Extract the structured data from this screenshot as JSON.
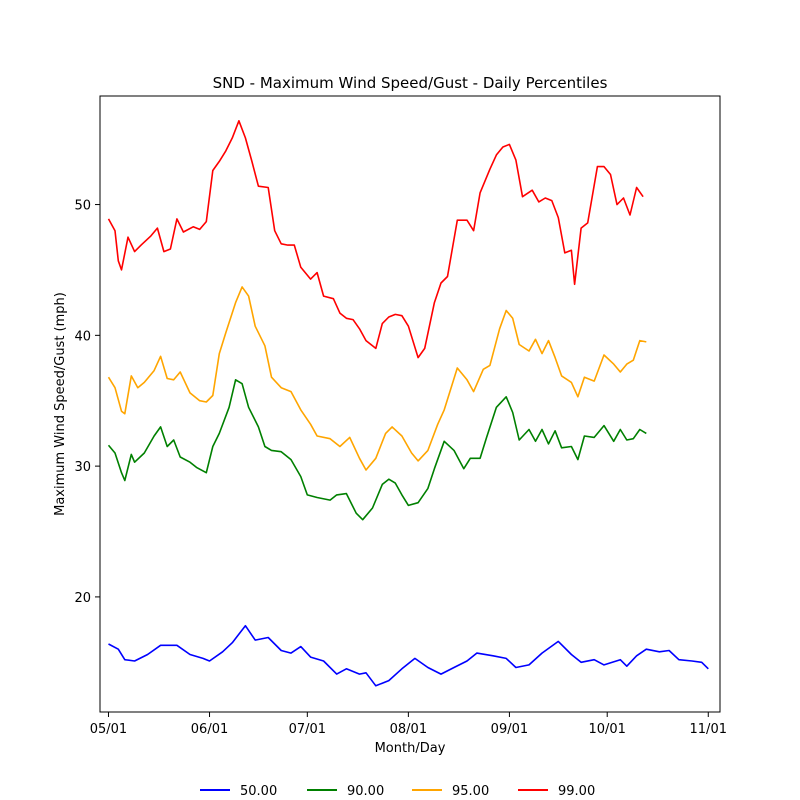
{
  "chart_data": {
    "type": "line",
    "title": "SND - Maximum Wind Speed/Gust - Daily Percentiles",
    "xlabel": "Month/Day",
    "ylabel": "Maximum Wind Speed/Gust (mph)",
    "x_ticks": [
      "05/01",
      "06/01",
      "07/01",
      "08/01",
      "09/01",
      "10/01",
      "11/01"
    ],
    "y_ticks": [
      20,
      30,
      40,
      50
    ],
    "ylim": [
      11.2,
      58.3
    ],
    "x_range_days": [
      -2.6,
      187.6
    ],
    "grid": false,
    "legend_placement": "bottom-center",
    "series": [
      {
        "name": "50.00",
        "color": "#0000ff",
        "points": [
          [
            0,
            16.4
          ],
          [
            3,
            16.0
          ],
          [
            5,
            15.2
          ],
          [
            8,
            15.1
          ],
          [
            12,
            15.6
          ],
          [
            16,
            16.3
          ],
          [
            21,
            16.3
          ],
          [
            25,
            15.6
          ],
          [
            29,
            15.3
          ],
          [
            31,
            15.1
          ],
          [
            35,
            15.8
          ],
          [
            38,
            16.5
          ],
          [
            42,
            17.8
          ],
          [
            45,
            16.7
          ],
          [
            49,
            16.9
          ],
          [
            53,
            15.9
          ],
          [
            56,
            15.7
          ],
          [
            59,
            16.2
          ],
          [
            62,
            15.4
          ],
          [
            66,
            15.1
          ],
          [
            70,
            14.1
          ],
          [
            73,
            14.5
          ],
          [
            77,
            14.1
          ],
          [
            79,
            14.2
          ],
          [
            82,
            13.2
          ],
          [
            86,
            13.6
          ],
          [
            90,
            14.5
          ],
          [
            94,
            15.3
          ],
          [
            98,
            14.6
          ],
          [
            102,
            14.1
          ],
          [
            106,
            14.6
          ],
          [
            110,
            15.1
          ],
          [
            113,
            15.7
          ],
          [
            118,
            15.5
          ],
          [
            122,
            15.3
          ],
          [
            125,
            14.6
          ],
          [
            129,
            14.8
          ],
          [
            133,
            15.7
          ],
          [
            138,
            16.6
          ],
          [
            142,
            15.6
          ],
          [
            145,
            15.0
          ],
          [
            149,
            15.2
          ],
          [
            152,
            14.8
          ],
          [
            157,
            15.2
          ],
          [
            159,
            14.7
          ],
          [
            162,
            15.5
          ],
          [
            165,
            16.0
          ],
          [
            169,
            15.8
          ],
          [
            172,
            15.9
          ],
          [
            175,
            15.2
          ],
          [
            179,
            15.1
          ],
          [
            182,
            15.0
          ],
          [
            184,
            14.5
          ]
        ]
      },
      {
        "name": "90.00",
        "color": "#008000",
        "points": [
          [
            0,
            31.6
          ],
          [
            2,
            31.0
          ],
          [
            4,
            29.5
          ],
          [
            5,
            28.9
          ],
          [
            7,
            30.9
          ],
          [
            8,
            30.3
          ],
          [
            11,
            31.0
          ],
          [
            14,
            32.3
          ],
          [
            16,
            33.0
          ],
          [
            18,
            31.5
          ],
          [
            20,
            32.0
          ],
          [
            22,
            30.7
          ],
          [
            25,
            30.3
          ],
          [
            27,
            29.9
          ],
          [
            30,
            29.5
          ],
          [
            32,
            31.5
          ],
          [
            34,
            32.5
          ],
          [
            37,
            34.5
          ],
          [
            39,
            36.6
          ],
          [
            41,
            36.3
          ],
          [
            43,
            34.5
          ],
          [
            46,
            33.0
          ],
          [
            48,
            31.5
          ],
          [
            50,
            31.2
          ],
          [
            53,
            31.1
          ],
          [
            56,
            30.5
          ],
          [
            59,
            29.2
          ],
          [
            61,
            27.8
          ],
          [
            64,
            27.6
          ],
          [
            68,
            27.4
          ],
          [
            70,
            27.8
          ],
          [
            73,
            27.9
          ],
          [
            76,
            26.4
          ],
          [
            78,
            25.9
          ],
          [
            81,
            26.8
          ],
          [
            84,
            28.6
          ],
          [
            86,
            29.0
          ],
          [
            88,
            28.7
          ],
          [
            90,
            27.8
          ],
          [
            92,
            27.0
          ],
          [
            95,
            27.2
          ],
          [
            98,
            28.3
          ],
          [
            100,
            29.8
          ],
          [
            103,
            31.9
          ],
          [
            106,
            31.2
          ],
          [
            109,
            29.8
          ],
          [
            111,
            30.6
          ],
          [
            114,
            30.6
          ],
          [
            116,
            32.2
          ],
          [
            119,
            34.5
          ],
          [
            122,
            35.3
          ],
          [
            124,
            34.1
          ],
          [
            126,
            32.0
          ],
          [
            129,
            32.8
          ],
          [
            131,
            31.9
          ],
          [
            133,
            32.8
          ],
          [
            135,
            31.7
          ],
          [
            137,
            32.7
          ],
          [
            139,
            31.4
          ],
          [
            142,
            31.5
          ],
          [
            144,
            30.5
          ],
          [
            146,
            32.3
          ],
          [
            149,
            32.2
          ],
          [
            152,
            33.1
          ],
          [
            155,
            31.9
          ],
          [
            157,
            32.8
          ],
          [
            159,
            32.0
          ],
          [
            161,
            32.1
          ],
          [
            163,
            32.8
          ],
          [
            165,
            32.5
          ]
        ]
      },
      {
        "name": "95.00",
        "color": "#ffa500",
        "points": [
          [
            0,
            36.8
          ],
          [
            2,
            36.0
          ],
          [
            4,
            34.2
          ],
          [
            5,
            34.0
          ],
          [
            7,
            36.9
          ],
          [
            9,
            36.0
          ],
          [
            11,
            36.4
          ],
          [
            14,
            37.3
          ],
          [
            16,
            38.4
          ],
          [
            18,
            36.7
          ],
          [
            20,
            36.6
          ],
          [
            22,
            37.2
          ],
          [
            25,
            35.6
          ],
          [
            28,
            35.0
          ],
          [
            30,
            34.9
          ],
          [
            32,
            35.4
          ],
          [
            34,
            38.6
          ],
          [
            36,
            40.2
          ],
          [
            39,
            42.5
          ],
          [
            41,
            43.7
          ],
          [
            43,
            43.0
          ],
          [
            45,
            40.7
          ],
          [
            48,
            39.2
          ],
          [
            50,
            36.8
          ],
          [
            53,
            36.0
          ],
          [
            56,
            35.7
          ],
          [
            59,
            34.3
          ],
          [
            62,
            33.2
          ],
          [
            64,
            32.3
          ],
          [
            68,
            32.1
          ],
          [
            71,
            31.5
          ],
          [
            74,
            32.2
          ],
          [
            77,
            30.6
          ],
          [
            79,
            29.7
          ],
          [
            82,
            30.6
          ],
          [
            85,
            32.5
          ],
          [
            87,
            33.0
          ],
          [
            90,
            32.3
          ],
          [
            93,
            31.0
          ],
          [
            95,
            30.4
          ],
          [
            98,
            31.2
          ],
          [
            101,
            33.2
          ],
          [
            103,
            34.3
          ],
          [
            107,
            37.5
          ],
          [
            110,
            36.6
          ],
          [
            112,
            35.7
          ],
          [
            115,
            37.4
          ],
          [
            117,
            37.7
          ],
          [
            120,
            40.5
          ],
          [
            122,
            41.9
          ],
          [
            124,
            41.3
          ],
          [
            126,
            39.3
          ],
          [
            129,
            38.8
          ],
          [
            131,
            39.7
          ],
          [
            133,
            38.6
          ],
          [
            135,
            39.6
          ],
          [
            137,
            38.3
          ],
          [
            139,
            36.9
          ],
          [
            142,
            36.4
          ],
          [
            144,
            35.3
          ],
          [
            146,
            36.8
          ],
          [
            149,
            36.5
          ],
          [
            152,
            38.5
          ],
          [
            155,
            37.8
          ],
          [
            157,
            37.2
          ],
          [
            159,
            37.8
          ],
          [
            161,
            38.1
          ],
          [
            163,
            39.6
          ],
          [
            165,
            39.5
          ]
        ]
      },
      {
        "name": "99.00",
        "color": "#ff0000",
        "points": [
          [
            0,
            48.9
          ],
          [
            2,
            48.0
          ],
          [
            3,
            45.7
          ],
          [
            4,
            45.0
          ],
          [
            6,
            47.5
          ],
          [
            8,
            46.4
          ],
          [
            10,
            46.9
          ],
          [
            13,
            47.6
          ],
          [
            15,
            48.2
          ],
          [
            17,
            46.4
          ],
          [
            19,
            46.6
          ],
          [
            21,
            48.9
          ],
          [
            23,
            47.9
          ],
          [
            26,
            48.3
          ],
          [
            28,
            48.1
          ],
          [
            30,
            48.7
          ],
          [
            32,
            52.6
          ],
          [
            34,
            53.3
          ],
          [
            36,
            54.1
          ],
          [
            38,
            55.1
          ],
          [
            40,
            56.4
          ],
          [
            42,
            55.1
          ],
          [
            44,
            53.3
          ],
          [
            46,
            51.4
          ],
          [
            49,
            51.3
          ],
          [
            51,
            48.0
          ],
          [
            53,
            47.0
          ],
          [
            55,
            46.9
          ],
          [
            57,
            46.9
          ],
          [
            59,
            45.2
          ],
          [
            62,
            44.3
          ],
          [
            64,
            44.8
          ],
          [
            66,
            43.0
          ],
          [
            69,
            42.8
          ],
          [
            71,
            41.7
          ],
          [
            73,
            41.3
          ],
          [
            75,
            41.2
          ],
          [
            77,
            40.5
          ],
          [
            79,
            39.6
          ],
          [
            82,
            39.0
          ],
          [
            84,
            40.9
          ],
          [
            86,
            41.4
          ],
          [
            88,
            41.6
          ],
          [
            90,
            41.5
          ],
          [
            92,
            40.7
          ],
          [
            95,
            38.3
          ],
          [
            97,
            39.0
          ],
          [
            100,
            42.5
          ],
          [
            102,
            44.0
          ],
          [
            104,
            44.5
          ],
          [
            107,
            48.8
          ],
          [
            110,
            48.8
          ],
          [
            112,
            48.0
          ],
          [
            114,
            50.9
          ],
          [
            117,
            52.7
          ],
          [
            119,
            53.8
          ],
          [
            121,
            54.4
          ],
          [
            123,
            54.6
          ],
          [
            125,
            53.4
          ],
          [
            127,
            50.6
          ],
          [
            130,
            51.1
          ],
          [
            132,
            50.2
          ],
          [
            134,
            50.5
          ],
          [
            136,
            50.3
          ],
          [
            138,
            49.0
          ],
          [
            140,
            46.3
          ],
          [
            142,
            46.5
          ],
          [
            143,
            43.9
          ],
          [
            145,
            48.2
          ],
          [
            147,
            48.6
          ],
          [
            150,
            52.9
          ],
          [
            152,
            52.9
          ],
          [
            154,
            52.3
          ],
          [
            156,
            50.0
          ],
          [
            158,
            50.5
          ],
          [
            160,
            49.2
          ],
          [
            162,
            51.3
          ],
          [
            164,
            50.6
          ]
        ]
      }
    ]
  }
}
